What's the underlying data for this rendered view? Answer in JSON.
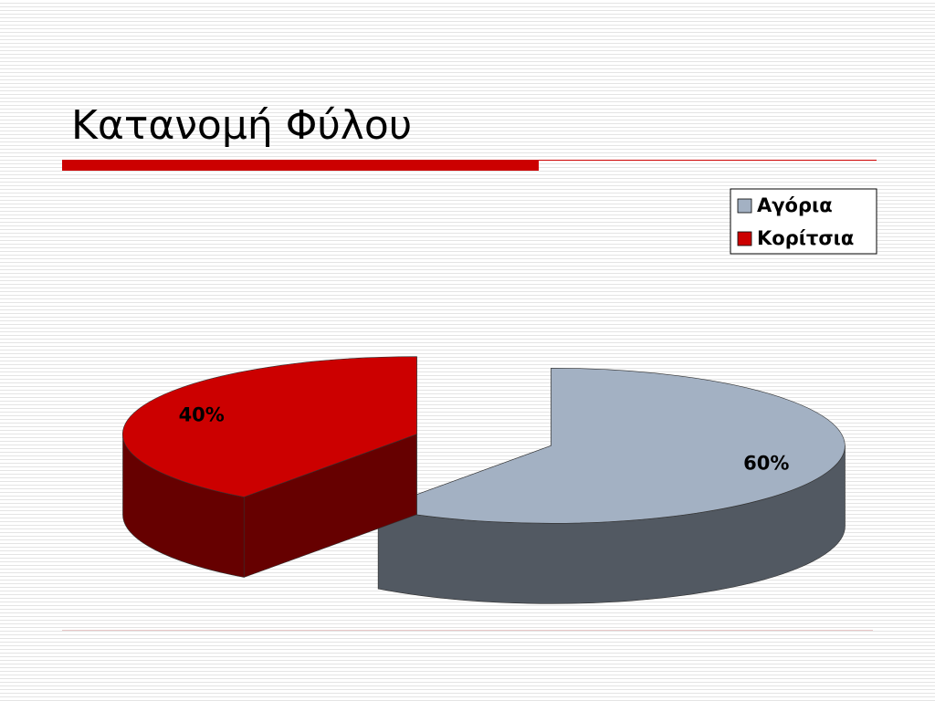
{
  "chart_data": {
    "type": "pie",
    "title": "Κατανομή Φύλου",
    "categories": [
      "Αγόρια",
      "Κορίτσια"
    ],
    "values": [
      60,
      40
    ],
    "value_labels": [
      "60%",
      "40%"
    ],
    "colors": [
      "#a3b1c3",
      "#cc0000"
    ],
    "legend": "top-right"
  }
}
